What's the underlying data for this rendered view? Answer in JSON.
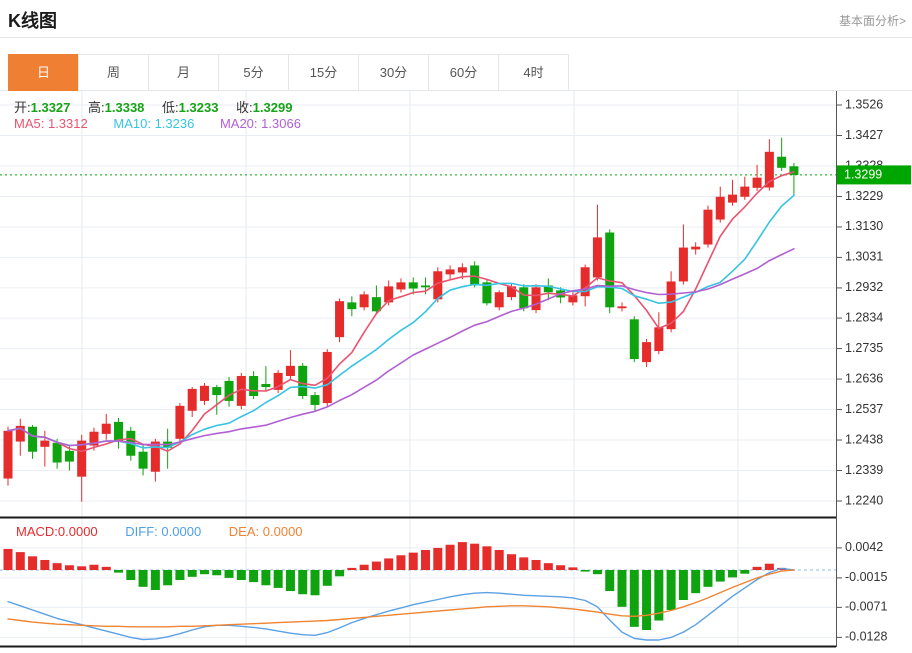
{
  "header": {
    "title": "K线图",
    "analysis_link": "基本面分析>"
  },
  "tabs": {
    "items": [
      "日",
      "周",
      "月",
      "5分",
      "15分",
      "30分",
      "60分",
      "4时"
    ],
    "selected": "日"
  },
  "info_bar": {
    "open_label": "开:",
    "open_value": "1.3327",
    "high_label": "高:",
    "high_value": "1.3338",
    "low_label": "低:",
    "low_value": "1.3233",
    "close_label": "收:",
    "close_value": "1.3299"
  },
  "ma_bar": {
    "ma5_label": "MA5:",
    "ma5_value": "1.3312",
    "ma10_label": "MA10:",
    "ma10_value": "1.3236",
    "ma20_label": "MA20:",
    "ma20_value": "1.3066"
  },
  "macd_bar": {
    "macd_label": "MACD:",
    "macd_value": "0.0000",
    "diff_label": "DIFF:",
    "diff_value": "0.0000",
    "dea_label": "DEA:",
    "dea_value": "0.0000"
  },
  "colors": {
    "up": "#e62b2b",
    "down": "#10a310",
    "ma5": "#e8546f",
    "ma10": "#36c3e4",
    "ma20": "#b160d2",
    "diff_line": "#5ba1e4",
    "dea_line": "#ef8432",
    "tab_active_bg": "#ee7f33",
    "price_badge_bg": "#00a600",
    "price_line": "#00a600",
    "grid": "#e9eef4",
    "grid_vertical": "#e4eaf1",
    "zero_dash": "#b5d3ec",
    "axis": "#555555",
    "label": "#333333",
    "separator": "#1a1a1a"
  },
  "chart_data": {
    "type": "candlestick+macd",
    "title": "K线图 (daily candlestick with MA5/MA10/MA20 and MACD)",
    "price_axis_ticks": [
      "1.3526",
      "1.3427",
      "1.3328",
      "1.3229",
      "1.3130",
      "1.3031",
      "1.2932",
      "1.2834",
      "1.2735",
      "1.2636",
      "1.2537",
      "1.2438",
      "1.2339",
      "1.2240"
    ],
    "price_axis_range": [
      1.224,
      1.3526
    ],
    "current_price": "1.3299",
    "macd_axis_ticks": [
      "0.0042",
      "-0.0015",
      "-0.0071",
      "-0.0128"
    ],
    "macd_axis_range": [
      -0.0128,
      0.0042
    ],
    "ma_periods": [
      5,
      10,
      20
    ],
    "legend": {
      "up_means": "close >= open (red)",
      "down_means": "close < open (green)"
    },
    "candles": [
      [
        1.2313,
        1.2481,
        1.229,
        1.2468
      ],
      [
        1.2433,
        1.2507,
        1.2387,
        1.2484
      ],
      [
        1.2481,
        1.2487,
        1.2377,
        1.24
      ],
      [
        1.2416,
        1.2468,
        1.2352,
        1.2436
      ],
      [
        1.2429,
        1.2442,
        1.2345,
        1.2365
      ],
      [
        1.2403,
        1.2423,
        1.2339,
        1.2368
      ],
      [
        1.2319,
        1.2455,
        1.2238,
        1.2436
      ],
      [
        1.242,
        1.2478,
        1.2404,
        1.2465
      ],
      [
        1.2458,
        1.2523,
        1.2439,
        1.2491
      ],
      [
        1.2497,
        1.251,
        1.241,
        1.2432
      ],
      [
        1.2468,
        1.2481,
        1.2371,
        1.2387
      ],
      [
        1.24,
        1.2423,
        1.2323,
        1.2345
      ],
      [
        1.2335,
        1.2442,
        1.2303,
        1.2433
      ],
      [
        1.2433,
        1.2475,
        1.2345,
        1.2413
      ],
      [
        1.2442,
        1.2558,
        1.2426,
        1.2549
      ],
      [
        1.2533,
        1.261,
        1.2513,
        1.2604
      ],
      [
        1.2565,
        1.2623,
        1.2552,
        1.2614
      ],
      [
        1.261,
        1.2617,
        1.252,
        1.2584
      ],
      [
        1.263,
        1.2643,
        1.2546,
        1.2565
      ],
      [
        1.2549,
        1.2656,
        1.2538,
        1.2646
      ],
      [
        1.2646,
        1.2662,
        1.2571,
        1.2581
      ],
      [
        1.262,
        1.2678,
        1.2597,
        1.261
      ],
      [
        1.2601,
        1.2665,
        1.2591,
        1.2656
      ],
      [
        1.2646,
        1.273,
        1.2636,
        1.2679
      ],
      [
        1.2679,
        1.2688,
        1.2571,
        1.2581
      ],
      [
        1.2584,
        1.2594,
        1.2533,
        1.2552
      ],
      [
        1.2558,
        1.2733,
        1.2548,
        1.2724
      ],
      [
        1.2772,
        1.2898,
        1.2756,
        1.2889
      ],
      [
        1.2885,
        1.2905,
        1.284,
        1.2863
      ],
      [
        1.2869,
        1.2921,
        1.2859,
        1.2911
      ],
      [
        1.2902,
        1.294,
        1.2846,
        1.2856
      ],
      [
        1.2885,
        1.2956,
        1.2875,
        1.2937
      ],
      [
        1.2927,
        1.2963,
        1.2917,
        1.295
      ],
      [
        1.295,
        1.2966,
        1.2911,
        1.293
      ],
      [
        1.294,
        1.2966,
        1.2911,
        1.2934
      ],
      [
        1.2895,
        1.2999,
        1.2885,
        1.2986
      ],
      [
        1.2976,
        1.3005,
        1.2956,
        1.2992
      ],
      [
        1.2982,
        1.3012,
        1.296,
        1.2999
      ],
      [
        1.3005,
        1.3018,
        1.2934,
        1.294
      ],
      [
        1.295,
        1.296,
        1.2875,
        1.2882
      ],
      [
        1.2869,
        1.2924,
        1.2859,
        1.2918
      ],
      [
        1.2902,
        1.2947,
        1.2892,
        1.2937
      ],
      [
        1.2934,
        1.2944,
        1.2856,
        1.2866
      ],
      [
        1.286,
        1.2944,
        1.285,
        1.2934
      ],
      [
        1.294,
        1.2963,
        1.2892,
        1.2918
      ],
      [
        1.2924,
        1.2934,
        1.2882,
        1.2901
      ],
      [
        1.2885,
        1.2918,
        1.2875,
        1.2908
      ],
      [
        1.2905,
        1.3008,
        1.2872,
        1.2999
      ],
      [
        1.2966,
        1.3202,
        1.2956,
        1.3096
      ],
      [
        1.3112,
        1.3122,
        1.285,
        1.2869
      ],
      [
        1.2866,
        1.2885,
        1.2856,
        1.2872
      ],
      [
        1.283,
        1.284,
        1.2691,
        1.2701
      ],
      [
        1.2691,
        1.2766,
        1.2675,
        1.2756
      ],
      [
        1.2727,
        1.2853,
        1.2717,
        1.2804
      ],
      [
        1.2798,
        1.2986,
        1.2788,
        1.2953
      ],
      [
        1.2953,
        1.3138,
        1.2943,
        1.3063
      ],
      [
        1.3057,
        1.308,
        1.304,
        1.3066
      ],
      [
        1.3073,
        1.3199,
        1.3063,
        1.3186
      ],
      [
        1.3154,
        1.3261,
        1.3144,
        1.3228
      ],
      [
        1.3209,
        1.3283,
        1.3199,
        1.3235
      ],
      [
        1.3228,
        1.3293,
        1.3218,
        1.3261
      ],
      [
        1.3257,
        1.3332,
        1.3247,
        1.329
      ],
      [
        1.3258,
        1.3415,
        1.3248,
        1.3374
      ],
      [
        1.3358,
        1.342,
        1.3312,
        1.3322
      ],
      [
        1.3327,
        1.3338,
        1.3233,
        1.3299
      ]
    ],
    "macd_histogram": [
      0.004,
      0.0034,
      0.0026,
      0.0019,
      0.0013,
      0.0009,
      0.0007,
      0.001,
      0.0006,
      -0.0005,
      -0.0019,
      -0.0032,
      -0.0038,
      -0.0029,
      -0.0019,
      -0.0013,
      -0.0008,
      -0.001,
      -0.0015,
      -0.0019,
      -0.0023,
      -0.0029,
      -0.0034,
      -0.004,
      -0.0046,
      -0.0048,
      -0.003,
      -0.0012,
      0.0004,
      0.001,
      0.0016,
      0.0022,
      0.0028,
      0.0033,
      0.0038,
      0.0042,
      0.0048,
      0.0053,
      0.005,
      0.0045,
      0.0038,
      0.003,
      0.0024,
      0.0019,
      0.0013,
      0.0009,
      0.0005,
      -0.0003,
      -0.0008,
      -0.004,
      -0.007,
      -0.0108,
      -0.0114,
      -0.0096,
      -0.0076,
      -0.0057,
      -0.0044,
      -0.0032,
      -0.0022,
      -0.0014,
      -0.0007,
      0.0006,
      0.0012,
      0.0004,
      0.0
    ],
    "diff_line": [
      -0.006,
      -0.0068,
      -0.0076,
      -0.0084,
      -0.0092,
      -0.0098,
      -0.0104,
      -0.011,
      -0.0116,
      -0.0122,
      -0.0128,
      -0.0132,
      -0.0131,
      -0.0127,
      -0.0121,
      -0.0114,
      -0.0108,
      -0.0105,
      -0.0105,
      -0.0107,
      -0.0109,
      -0.0112,
      -0.0116,
      -0.012,
      -0.0123,
      -0.0124,
      -0.0119,
      -0.011,
      -0.01,
      -0.0092,
      -0.0085,
      -0.0078,
      -0.0072,
      -0.0066,
      -0.0061,
      -0.0056,
      -0.0051,
      -0.0047,
      -0.0044,
      -0.0043,
      -0.0044,
      -0.0046,
      -0.0048,
      -0.0049,
      -0.005,
      -0.0051,
      -0.0053,
      -0.0058,
      -0.007,
      -0.0095,
      -0.0118,
      -0.013,
      -0.0133,
      -0.0133,
      -0.0128,
      -0.0118,
      -0.0104,
      -0.0086,
      -0.0068,
      -0.005,
      -0.0034,
      -0.0018,
      -0.0005,
      0.0003,
      0.0
    ],
    "dea_line": [
      -0.0093,
      -0.0096,
      -0.0099,
      -0.0101,
      -0.0103,
      -0.0104,
      -0.0105,
      -0.0106,
      -0.0107,
      -0.0107,
      -0.0108,
      -0.0108,
      -0.0108,
      -0.0108,
      -0.0107,
      -0.0107,
      -0.0106,
      -0.0105,
      -0.0104,
      -0.0103,
      -0.0102,
      -0.0101,
      -0.01,
      -0.0099,
      -0.0098,
      -0.0097,
      -0.0096,
      -0.0094,
      -0.0092,
      -0.009,
      -0.0088,
      -0.0086,
      -0.0084,
      -0.0082,
      -0.008,
      -0.0078,
      -0.0076,
      -0.0074,
      -0.0072,
      -0.007,
      -0.0069,
      -0.0068,
      -0.0068,
      -0.0069,
      -0.007,
      -0.0072,
      -0.0074,
      -0.0077,
      -0.008,
      -0.0084,
      -0.0087,
      -0.0088,
      -0.0086,
      -0.0082,
      -0.0077,
      -0.007,
      -0.0062,
      -0.0053,
      -0.0043,
      -0.0033,
      -0.0024,
      -0.0015,
      -0.0008,
      -0.0002,
      0.0
    ]
  }
}
